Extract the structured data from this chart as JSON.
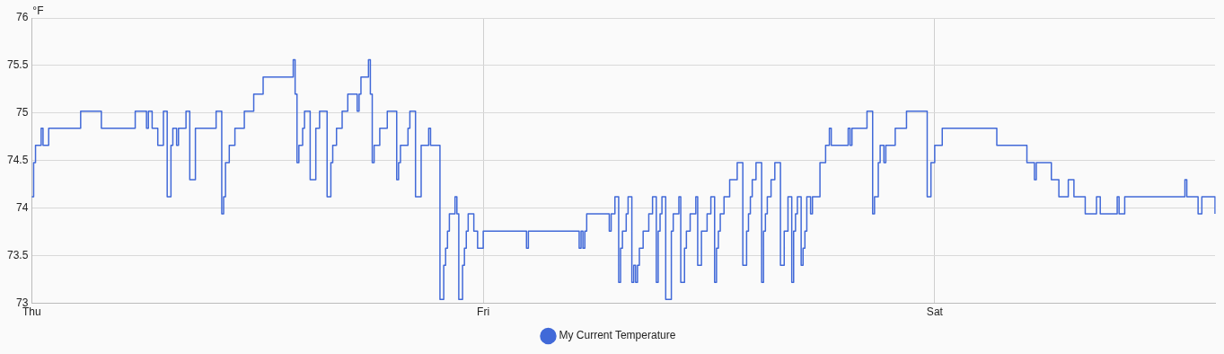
{
  "chart_data": {
    "type": "step",
    "ylabel": "°F",
    "legend": "bottom",
    "grid": true,
    "marker": "none",
    "line_style": "solid",
    "ylim": [
      73,
      76
    ],
    "yticks": [
      73,
      73.5,
      74,
      74.5,
      75,
      75.5,
      76
    ],
    "categories": [
      "Thu",
      null,
      null,
      null,
      null,
      null,
      null,
      null,
      null,
      null,
      null,
      null,
      null,
      null,
      null,
      null,
      null,
      null,
      null,
      null,
      null,
      null,
      null,
      null,
      null,
      null,
      null,
      null,
      null,
      null,
      null,
      null,
      null,
      null,
      null,
      null,
      null,
      null,
      null,
      null,
      null,
      null,
      null,
      null,
      null,
      null,
      null,
      null,
      null,
      null,
      null,
      null,
      null,
      null,
      null,
      null,
      null,
      null,
      null,
      null,
      null,
      null,
      null,
      null,
      null,
      null,
      null,
      null,
      null,
      null,
      null,
      null,
      null,
      null,
      null,
      null,
      null,
      null,
      null,
      null,
      null,
      null,
      null,
      null,
      null,
      null,
      null,
      null,
      null,
      null,
      null,
      null,
      null,
      null,
      null,
      null,
      null,
      null,
      null,
      null,
      null,
      null,
      null,
      null,
      null,
      null,
      null,
      null,
      null,
      null,
      null,
      null,
      null,
      null,
      null,
      null,
      null,
      null,
      null,
      null,
      null,
      null,
      null,
      null,
      null,
      null,
      null,
      null,
      null,
      null,
      null,
      null,
      null,
      null,
      null,
      null,
      null,
      null,
      null,
      null,
      null,
      null,
      null,
      null,
      null,
      null,
      null,
      null,
      null,
      null,
      null,
      null,
      null,
      null,
      null,
      null,
      null,
      null,
      null,
      null,
      null,
      null,
      null,
      null,
      null,
      null,
      null,
      null,
      null,
      null,
      null,
      null,
      null,
      null,
      null,
      null,
      null,
      null,
      null,
      null,
      null,
      null,
      null,
      null,
      null,
      null,
      null,
      null,
      null,
      null,
      null,
      null,
      null,
      null,
      null,
      null,
      null,
      null,
      null,
      null,
      null,
      null,
      null,
      null,
      null,
      null,
      null,
      null,
      null,
      null,
      null,
      null,
      null,
      null,
      null,
      null,
      null,
      null,
      null,
      null,
      null,
      null,
      null,
      null,
      null,
      null,
      null,
      null,
      null,
      null,
      null,
      null,
      null,
      null,
      null,
      null,
      null,
      null,
      null,
      null,
      "Fri",
      null,
      null,
      null,
      null,
      null,
      null,
      null,
      null,
      null,
      null,
      null,
      null,
      null,
      null,
      null,
      null,
      null,
      null,
      null,
      null,
      null,
      null,
      null,
      null,
      null,
      null,
      null,
      null,
      null,
      null,
      null,
      null,
      null,
      null,
      null,
      null,
      null,
      null,
      null,
      null,
      null,
      null,
      null,
      null,
      null,
      null,
      null,
      null,
      null,
      null,
      null,
      null,
      null,
      null,
      null,
      null,
      null,
      null,
      null,
      null,
      null,
      null,
      null,
      null,
      null,
      null,
      null,
      null,
      null,
      null,
      null,
      null,
      null,
      null,
      null,
      null,
      null,
      null,
      null,
      null,
      null,
      null,
      null,
      null,
      null,
      null,
      null,
      null,
      null,
      null,
      null,
      null,
      null,
      null,
      null,
      null,
      null,
      null,
      null,
      null,
      null,
      null,
      null,
      null,
      null,
      null,
      null,
      null,
      null,
      null,
      null,
      null,
      null,
      null,
      null,
      null,
      null,
      null,
      null,
      null,
      null,
      null,
      null,
      null,
      null,
      null,
      null,
      null,
      null,
      null,
      null,
      null,
      null,
      null,
      null,
      null,
      null,
      null,
      null,
      null,
      null,
      null,
      null,
      null,
      null,
      null,
      null,
      null,
      null,
      null,
      null,
      null,
      null,
      null,
      null,
      null,
      null,
      null,
      null,
      null,
      null,
      null,
      null,
      null,
      null,
      null,
      null,
      null,
      null,
      null,
      null,
      null,
      null,
      null,
      null,
      null,
      null,
      null,
      null,
      null,
      null,
      null,
      null,
      null,
      null,
      null,
      null,
      null,
      null,
      null,
      null,
      null,
      null,
      null,
      null,
      null,
      null,
      null,
      null,
      null,
      null,
      null,
      null,
      null,
      null,
      null,
      null,
      null,
      null,
      null,
      null,
      null,
      null,
      null,
      null,
      null,
      null,
      null,
      null,
      null,
      null,
      null,
      null,
      null,
      null,
      null,
      null,
      null,
      null,
      null,
      null,
      null,
      null,
      null,
      null,
      null,
      null,
      null,
      null,
      "Sat",
      null,
      null,
      null,
      null,
      null,
      null,
      null,
      null,
      null,
      null,
      null,
      null,
      null,
      null,
      null,
      null,
      null,
      null,
      null,
      null,
      null,
      null,
      null,
      null,
      null,
      null,
      null,
      null,
      null,
      null,
      null,
      null,
      null,
      null,
      null,
      null,
      null,
      null,
      null,
      null,
      null,
      null,
      null,
      null,
      null,
      null,
      null,
      null,
      null,
      null,
      null,
      null,
      null,
      null,
      null,
      null,
      null,
      null,
      null,
      null,
      null,
      null,
      null,
      null,
      null,
      null,
      null,
      null,
      null,
      null,
      null,
      null,
      null,
      null,
      null,
      null,
      null,
      null,
      null,
      null,
      null,
      null,
      null,
      null,
      null,
      null,
      null,
      null,
      null,
      null,
      null,
      null,
      null,
      null,
      null,
      null,
      null,
      null,
      null,
      null,
      null,
      null,
      null,
      null,
      null,
      null,
      null,
      null,
      null,
      null,
      null,
      null,
      null,
      null,
      null,
      null,
      null,
      null,
      null,
      null,
      null,
      null,
      null,
      null,
      null,
      null,
      null,
      null,
      null,
      null,
      null,
      null,
      null,
      null,
      null,
      null,
      null,
      null,
      null,
      null,
      null,
      null,
      null,
      null,
      null,
      null,
      null,
      null,
      null
    ],
    "series": [
      {
        "name": "My Current Temperature",
        "color": "#4169d8",
        "values": [
          74.12,
          74.48,
          74.66,
          74.66,
          74.66,
          74.84,
          74.66,
          74.66,
          74.66,
          74.84,
          74.84,
          74.84,
          74.84,
          74.84,
          74.84,
          74.84,
          74.84,
          74.84,
          74.84,
          74.84,
          74.84,
          74.84,
          74.84,
          74.84,
          74.84,
          74.84,
          75.02,
          75.02,
          75.02,
          75.02,
          75.02,
          75.02,
          75.02,
          75.02,
          75.02,
          75.02,
          75.02,
          74.84,
          74.84,
          74.84,
          74.84,
          74.84,
          74.84,
          74.84,
          74.84,
          74.84,
          74.84,
          74.84,
          74.84,
          74.84,
          74.84,
          74.84,
          74.84,
          74.84,
          74.84,
          75.02,
          75.02,
          75.02,
          75.02,
          75.02,
          75.02,
          74.84,
          75.02,
          75.02,
          74.84,
          74.84,
          74.84,
          74.66,
          74.66,
          74.66,
          75.02,
          75.02,
          74.12,
          74.12,
          74.66,
          74.84,
          74.84,
          74.66,
          74.84,
          74.84,
          74.84,
          74.84,
          75.02,
          75.02,
          74.3,
          74.3,
          74.3,
          74.84,
          74.84,
          74.84,
          74.84,
          74.84,
          74.84,
          74.84,
          74.84,
          74.84,
          74.84,
          74.84,
          75.02,
          75.02,
          75.02,
          73.94,
          74.12,
          74.48,
          74.48,
          74.66,
          74.66,
          74.66,
          74.84,
          74.84,
          74.84,
          74.84,
          74.84,
          75.02,
          75.02,
          75.02,
          75.02,
          75.02,
          75.2,
          75.2,
          75.2,
          75.2,
          75.2,
          75.38,
          75.38,
          75.38,
          75.38,
          75.38,
          75.38,
          75.38,
          75.38,
          75.38,
          75.38,
          75.38,
          75.38,
          75.38,
          75.38,
          75.38,
          75.38,
          75.56,
          75.2,
          74.48,
          74.66,
          74.66,
          74.84,
          75.02,
          75.02,
          75.02,
          74.3,
          74.3,
          74.3,
          74.84,
          74.84,
          75.02,
          75.02,
          75.02,
          75.02,
          74.12,
          74.12,
          74.48,
          74.66,
          74.66,
          74.84,
          74.84,
          74.84,
          75.02,
          75.02,
          75.02,
          75.2,
          75.2,
          75.2,
          75.2,
          75.2,
          75.02,
          75.2,
          75.38,
          75.38,
          75.38,
          75.38,
          75.56,
          75.2,
          74.48,
          74.66,
          74.66,
          74.66,
          74.84,
          74.84,
          74.84,
          74.84,
          75.02,
          75.02,
          75.02,
          75.02,
          75.02,
          74.3,
          74.48,
          74.66,
          74.66,
          74.66,
          74.66,
          74.84,
          75.02,
          75.02,
          75.02,
          74.12,
          74.12,
          74.12,
          74.66,
          74.66,
          74.66,
          74.66,
          74.84,
          74.66,
          74.66,
          74.66,
          74.66,
          74.66,
          73.04,
          73.04,
          73.4,
          73.58,
          73.76,
          73.94,
          73.94,
          73.94,
          74.12,
          73.94,
          73.04,
          73.04,
          73.4,
          73.58,
          73.76,
          73.94,
          73.94,
          73.94,
          73.76,
          73.76,
          73.58,
          73.58,
          73.58,
          73.76,
          73.76,
          73.76,
          73.76,
          73.76,
          73.76,
          73.76,
          73.76,
          73.76,
          73.76,
          73.76,
          73.76,
          73.76,
          73.76,
          73.76,
          73.76,
          73.76,
          73.76,
          73.76,
          73.76,
          73.76,
          73.76,
          73.76,
          73.58,
          73.76,
          73.76,
          73.76,
          73.76,
          73.76,
          73.76,
          73.76,
          73.76,
          73.76,
          73.76,
          73.76,
          73.76,
          73.76,
          73.76,
          73.76,
          73.76,
          73.76,
          73.76,
          73.76,
          73.76,
          73.76,
          73.76,
          73.76,
          73.76,
          73.76,
          73.76,
          73.76,
          73.58,
          73.76,
          73.58,
          73.76,
          73.94,
          73.94,
          73.94,
          73.94,
          73.94,
          73.94,
          73.94,
          73.94,
          73.94,
          73.94,
          73.94,
          73.94,
          73.76,
          73.94,
          73.94,
          74.12,
          74.12,
          73.22,
          73.58,
          73.76,
          73.76,
          73.94,
          74.12,
          74.12,
          73.22,
          73.4,
          73.22,
          73.4,
          73.58,
          73.58,
          73.76,
          73.76,
          73.76,
          73.94,
          73.94,
          74.12,
          74.12,
          73.22,
          73.76,
          73.94,
          74.12,
          74.12,
          73.04,
          73.04,
          73.04,
          73.76,
          73.94,
          73.94,
          73.94,
          74.12,
          73.22,
          73.22,
          73.58,
          73.76,
          73.76,
          73.94,
          73.94,
          73.94,
          74.12,
          73.4,
          73.4,
          73.76,
          73.76,
          73.76,
          73.94,
          73.94,
          74.12,
          74.12,
          73.22,
          73.58,
          73.76,
          73.94,
          73.94,
          74.12,
          74.12,
          74.12,
          74.3,
          74.3,
          74.3,
          74.3,
          74.48,
          74.48,
          74.48,
          73.4,
          73.4,
          73.76,
          73.94,
          74.12,
          74.3,
          74.3,
          74.48,
          74.48,
          74.48,
          73.22,
          73.76,
          73.94,
          74.12,
          74.12,
          74.3,
          74.3,
          74.48,
          74.48,
          74.48,
          73.4,
          73.4,
          73.76,
          73.76,
          74.12,
          74.12,
          73.22,
          73.76,
          73.94,
          74.12,
          74.12,
          73.4,
          73.58,
          73.76,
          74.12,
          74.12,
          73.94,
          74.12,
          74.12,
          74.12,
          74.12,
          74.48,
          74.48,
          74.48,
          74.66,
          74.66,
          74.84,
          74.66,
          74.66,
          74.66,
          74.66,
          74.66,
          74.66,
          74.66,
          74.66,
          74.66,
          74.84,
          74.66,
          74.84,
          74.84,
          74.84,
          74.84,
          74.84,
          74.84,
          74.84,
          74.84,
          75.02,
          75.02,
          75.02,
          73.94,
          74.12,
          74.12,
          74.48,
          74.66,
          74.66,
          74.48,
          74.66,
          74.66,
          74.66,
          74.66,
          74.66,
          74.84,
          74.84,
          74.84,
          74.84,
          74.84,
          74.84,
          75.02,
          75.02,
          75.02,
          75.02,
          75.02,
          75.02,
          75.02,
          75.02,
          75.02,
          75.02,
          75.02,
          74.12,
          74.12,
          74.48,
          74.48,
          74.66,
          74.66,
          74.66,
          74.66,
          74.84,
          74.84,
          74.84,
          74.84,
          74.84,
          74.84,
          74.84,
          74.84,
          74.84,
          74.84,
          74.84,
          74.84,
          74.84,
          74.84,
          74.84,
          74.84,
          74.84,
          74.84,
          74.84,
          74.84,
          74.84,
          74.84,
          74.84,
          74.84,
          74.84,
          74.84,
          74.84,
          74.84,
          74.84,
          74.66,
          74.66,
          74.66,
          74.66,
          74.66,
          74.66,
          74.66,
          74.66,
          74.66,
          74.66,
          74.66,
          74.66,
          74.66,
          74.66,
          74.66,
          74.66,
          74.48,
          74.48,
          74.48,
          74.48,
          74.3,
          74.48,
          74.48,
          74.48,
          74.48,
          74.48,
          74.48,
          74.48,
          74.48,
          74.3,
          74.3,
          74.3,
          74.3,
          74.12,
          74.12,
          74.12,
          74.12,
          74.12,
          74.3,
          74.3,
          74.3,
          74.12,
          74.12,
          74.12,
          74.12,
          74.12,
          74.12,
          73.94,
          73.94,
          73.94,
          73.94,
          73.94,
          73.94,
          74.12,
          74.12,
          73.94,
          73.94,
          73.94,
          73.94,
          73.94,
          73.94,
          73.94,
          73.94,
          73.94,
          74.12,
          73.94,
          73.94,
          73.94,
          74.12,
          74.12,
          74.12,
          74.12,
          74.12,
          74.12,
          74.12,
          74.12,
          74.12,
          74.12,
          74.12,
          74.12,
          74.12,
          74.12,
          74.12,
          74.12,
          74.12,
          74.12,
          74.12,
          74.12,
          74.12,
          74.12,
          74.12,
          74.12,
          74.12,
          74.12,
          74.12,
          74.12,
          74.12,
          74.12,
          74.12,
          74.12,
          74.3,
          74.12,
          74.12,
          74.12,
          74.12,
          74.12,
          74.12,
          73.94,
          73.94,
          74.12,
          74.12,
          74.12,
          74.12,
          74.12,
          74.12,
          74.12,
          73.94
        ]
      }
    ]
  }
}
